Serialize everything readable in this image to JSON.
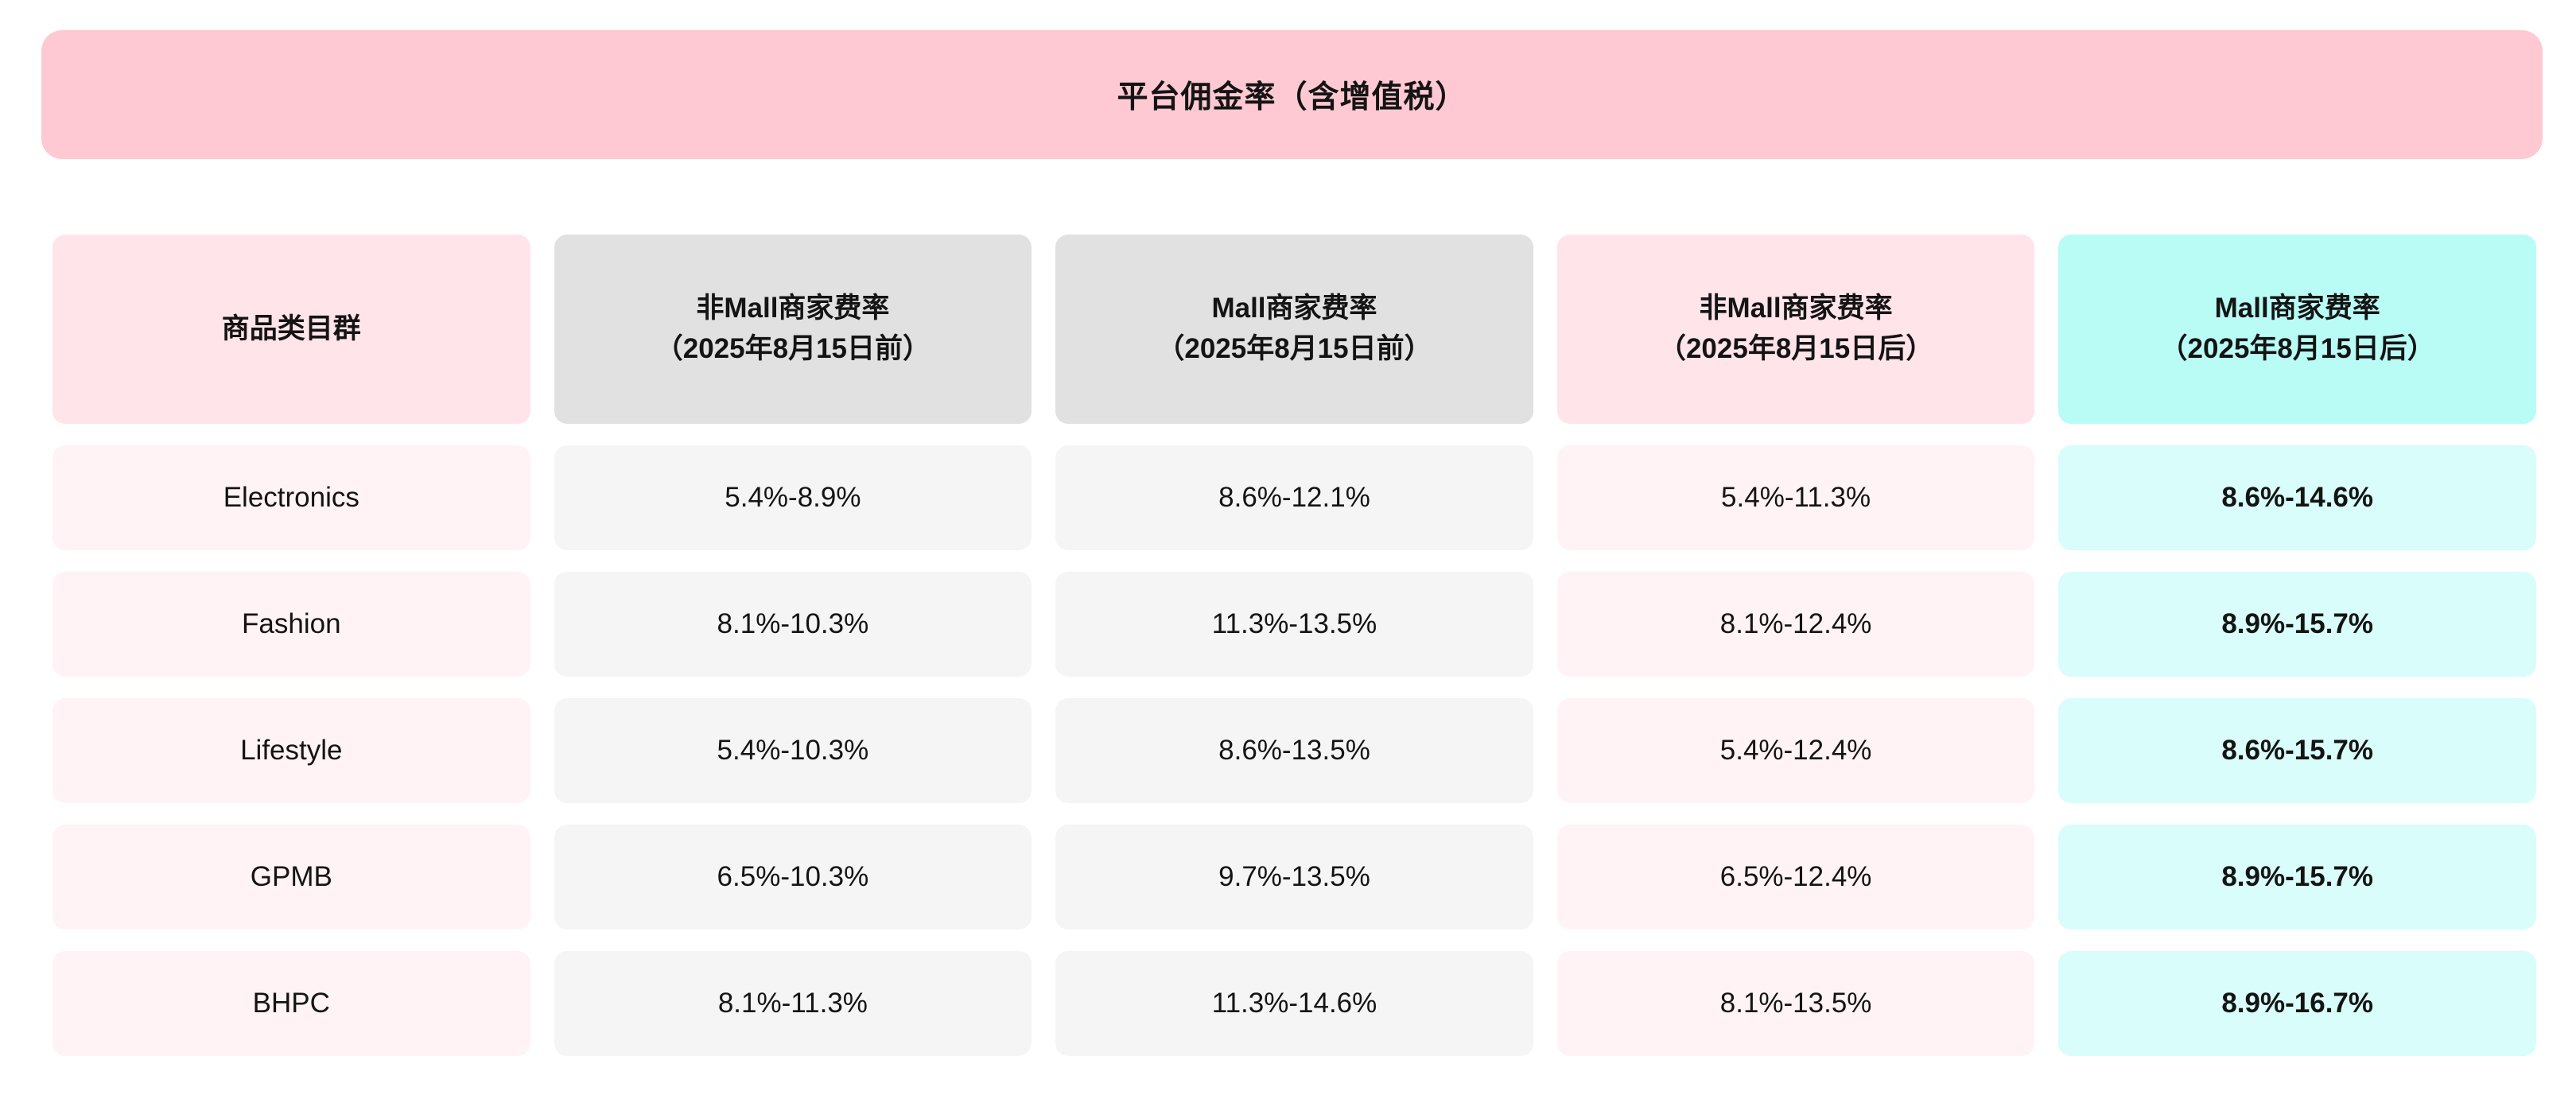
{
  "banner": {
    "title": "平台佣金率（含增值税）"
  },
  "table": {
    "headers": [
      {
        "label": "商品类目群",
        "sub": ""
      },
      {
        "label": "非Mall商家费率",
        "sub": "（2025年8月15日前）"
      },
      {
        "label": "Mall商家费率",
        "sub": "（2025年8月15日前）"
      },
      {
        "label": "非Mall商家费率",
        "sub": "（2025年8月15日后）"
      },
      {
        "label": "Mall商家费率",
        "sub": "（2025年8月15日后）"
      }
    ],
    "rows": [
      {
        "category": "Electronics",
        "values": [
          "5.4%-8.9%",
          "8.6%-12.1%",
          "5.4%-11.3%",
          "8.6%-14.6%"
        ]
      },
      {
        "category": "Fashion",
        "values": [
          "8.1%-10.3%",
          "11.3%-13.5%",
          "8.1%-12.4%",
          "8.9%-15.7%"
        ]
      },
      {
        "category": "Lifestyle",
        "values": [
          "5.4%-10.3%",
          "8.6%-13.5%",
          "5.4%-12.4%",
          "8.6%-15.7%"
        ]
      },
      {
        "category": "GPMB",
        "values": [
          "6.5%-10.3%",
          "9.7%-13.5%",
          "6.5%-12.4%",
          "8.9%-15.7%"
        ]
      },
      {
        "category": "BHPC",
        "values": [
          "8.1%-11.3%",
          "11.3%-14.6%",
          "8.1%-13.5%",
          "8.9%-16.7%"
        ]
      }
    ]
  },
  "colors": {
    "banner_pink": "#FFC9D3",
    "header_pink": "#FFE4E9",
    "header_gray": "#E1E1E1",
    "header_cyan": "#B9FCF6",
    "body_pink": "#FFF3F5",
    "body_gray": "#F5F5F5",
    "body_cyan": "#D9FDFA",
    "text": "#141414"
  },
  "chart_data": {
    "type": "table",
    "title": "平台佣金率（含增值税）",
    "columns": [
      "商品类目群",
      "非Mall商家费率（2025年8月15日前）",
      "Mall商家费率（2025年8月15日前）",
      "非Mall商家费率（2025年8月15日后）",
      "Mall商家费率（2025年8月15日后）"
    ],
    "rows": [
      [
        "Electronics",
        "5.4%-8.9%",
        "8.6%-12.1%",
        "5.4%-11.3%",
        "8.6%-14.6%"
      ],
      [
        "Fashion",
        "8.1%-10.3%",
        "11.3%-13.5%",
        "8.1%-12.4%",
        "8.9%-15.7%"
      ],
      [
        "Lifestyle",
        "5.4%-10.3%",
        "8.6%-13.5%",
        "5.4%-12.4%",
        "8.6%-15.7%"
      ],
      [
        "GPMB",
        "6.5%-10.3%",
        "9.7%-13.5%",
        "6.5%-12.4%",
        "8.9%-15.7%"
      ],
      [
        "BHPC",
        "8.1%-11.3%",
        "11.3%-14.6%",
        "8.1%-13.5%",
        "8.9%-16.7%"
      ]
    ],
    "notes": "Bold emphasis on last column (Mall商家费率 2025年8月15日后)"
  }
}
